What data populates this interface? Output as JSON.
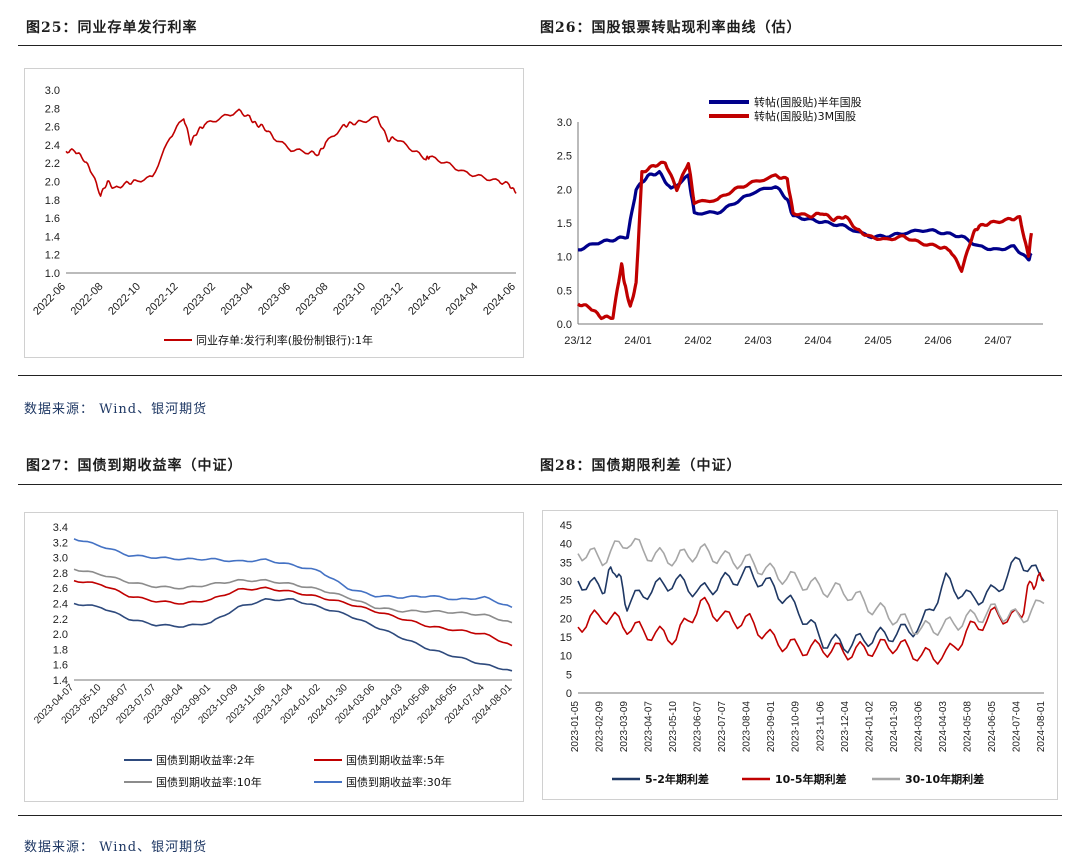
{
  "page": {
    "source_top": "数据来源： Wind、银河期货",
    "source_bottom": "数据来源： Wind、银河期货"
  },
  "colors": {
    "red": "#c00000",
    "navy": "#1f3864",
    "blue": "#2e4a7d",
    "gray": "#a6a6a6",
    "darkblue": "#00008b",
    "lightblue": "#4472c4",
    "midgray": "#8c8c8c"
  },
  "chart_data": [
    {
      "id": "fig25",
      "type": "line",
      "title": "图25：同业存单发行利率",
      "ylim": [
        1.0,
        3.0
      ],
      "yticks": [
        "1.0",
        "1.2",
        "1.4",
        "1.6",
        "1.8",
        "2.0",
        "2.2",
        "2.4",
        "2.6",
        "2.8",
        "3.0"
      ],
      "x_tick_labels": [
        "2022-06",
        "2022-08",
        "2022-10",
        "2022-12",
        "2023-02",
        "2023-04",
        "2023-06",
        "2023-08",
        "2023-10",
        "2023-12",
        "2024-02",
        "2024-04",
        "2024-06"
      ],
      "x_domain": [
        0,
        26
      ],
      "series": [
        {
          "name": "同业存单:发行利率(股份制银行):1年",
          "color": "#c00000",
          "x": [
            0,
            0.5,
            1,
            1.5,
            2,
            2.4,
            2.8,
            3.5,
            4,
            5,
            6,
            6.8,
            7.2,
            7.6,
            8,
            9,
            10,
            10.6,
            11,
            11.4,
            12,
            13,
            14,
            14.6,
            15,
            16,
            16.4,
            17,
            18,
            18.6,
            19,
            20,
            20.8,
            21,
            22,
            23,
            24,
            25,
            25.6,
            26
          ],
          "values": [
            2.33,
            2.34,
            2.25,
            2.1,
            1.85,
            2.0,
            1.92,
            1.98,
            2.0,
            2.05,
            2.48,
            2.7,
            2.42,
            2.55,
            2.62,
            2.7,
            2.77,
            2.7,
            2.62,
            2.6,
            2.48,
            2.35,
            2.32,
            2.3,
            2.42,
            2.6,
            2.63,
            2.65,
            2.7,
            2.45,
            2.48,
            2.35,
            2.25,
            2.27,
            2.2,
            2.1,
            2.05,
            2.0,
            1.97,
            1.87
          ]
        }
      ]
    },
    {
      "id": "fig26",
      "type": "line",
      "title": "图26：国股银票转贴现利率曲线（估）",
      "ylim": [
        0.0,
        3.0
      ],
      "yticks": [
        "0.0",
        "0.5",
        "1.0",
        "1.5",
        "2.0",
        "2.5",
        "3.0"
      ],
      "x_tick_labels": [
        "23/12",
        "24/01",
        "24/02",
        "24/03",
        "24/04",
        "24/05",
        "24/06",
        "24/07"
      ],
      "x_domain": [
        0,
        8
      ],
      "series": [
        {
          "name": "转帖(国股贴)半年国股",
          "color": "#00008b",
          "x": [
            0,
            0.3,
            0.6,
            0.85,
            1.0,
            1.2,
            1.4,
            1.6,
            1.9,
            2.0,
            2.4,
            2.7,
            3.0,
            3.4,
            3.6,
            3.7,
            4.0,
            4.3,
            4.6,
            5.0,
            5.3,
            5.6,
            6.0,
            6.3,
            6.6,
            6.9,
            7.2,
            7.5,
            7.75,
            7.8
          ],
          "values": [
            1.1,
            1.2,
            1.25,
            1.3,
            2.0,
            2.2,
            2.25,
            2.0,
            2.2,
            1.65,
            1.65,
            1.8,
            1.95,
            2.05,
            1.85,
            1.6,
            1.55,
            1.5,
            1.45,
            1.3,
            1.3,
            1.35,
            1.4,
            1.35,
            1.3,
            1.15,
            1.1,
            1.15,
            0.95,
            1.05
          ]
        },
        {
          "name": "转帖(国股贴)3M国股",
          "color": "#c00000",
          "x": [
            0,
            0.2,
            0.4,
            0.6,
            0.75,
            0.8,
            0.9,
            1.0,
            1.1,
            1.3,
            1.5,
            1.7,
            1.9,
            2.0,
            2.4,
            2.7,
            3.0,
            3.4,
            3.6,
            3.7,
            4.0,
            4.2,
            4.4,
            4.6,
            4.8,
            5.0,
            5.3,
            5.6,
            5.9,
            6.2,
            6.4,
            6.6,
            6.8,
            6.9,
            7.1,
            7.4,
            7.6,
            7.75,
            7.8
          ],
          "values": [
            0.3,
            0.25,
            0.1,
            0.1,
            0.9,
            0.6,
            0.25,
            0.6,
            2.25,
            2.35,
            2.4,
            2.0,
            2.4,
            1.8,
            1.85,
            2.0,
            2.1,
            2.2,
            2.15,
            1.65,
            1.6,
            1.65,
            1.55,
            1.6,
            1.4,
            1.3,
            1.25,
            1.3,
            1.2,
            1.15,
            1.1,
            0.8,
            1.35,
            1.45,
            1.5,
            1.55,
            1.58,
            1.0,
            1.35
          ]
        }
      ]
    },
    {
      "id": "fig27",
      "type": "line",
      "title": "图27：国债到期收益率（中证）",
      "ylim": [
        1.4,
        3.4
      ],
      "yticks": [
        "1.4",
        "1.6",
        "1.8",
        "2.0",
        "2.2",
        "2.4",
        "2.6",
        "2.8",
        "3.0",
        "3.2",
        "3.4"
      ],
      "x_tick_labels": [
        "2023-04-07",
        "2023-05-10",
        "2023-06-07",
        "2023-07-07",
        "2023-08-04",
        "2023-09-01",
        "2023-10-09",
        "2023-11-06",
        "2023-12-04",
        "2024-01-02",
        "2024-01-30",
        "2024-03-06",
        "2024-04-03",
        "2024-05-08",
        "2024-06-05",
        "2024-07-04",
        "2024-08-01"
      ],
      "x_domain": [
        0,
        16
      ],
      "series": [
        {
          "name": "国债到期收益率:2年",
          "color": "#2e4a7d",
          "x": [
            0,
            1,
            2,
            3,
            4,
            5,
            6,
            7,
            8,
            9,
            10,
            11,
            12,
            13,
            14,
            15,
            16
          ],
          "values": [
            2.4,
            2.35,
            2.2,
            2.12,
            2.1,
            2.15,
            2.35,
            2.45,
            2.45,
            2.35,
            2.25,
            2.1,
            1.95,
            1.8,
            1.7,
            1.6,
            1.52
          ]
        },
        {
          "name": "国债到期收益率:5年",
          "color": "#c00000",
          "x": [
            0,
            1,
            2,
            3,
            4,
            5,
            6,
            7,
            8,
            9,
            10,
            11,
            12,
            13,
            14,
            15,
            16
          ],
          "values": [
            2.7,
            2.65,
            2.5,
            2.43,
            2.4,
            2.45,
            2.58,
            2.6,
            2.55,
            2.48,
            2.4,
            2.3,
            2.2,
            2.1,
            2.05,
            2.0,
            1.85
          ]
        },
        {
          "name": "国债到期收益率:10年",
          "color": "#8c8c8c",
          "x": [
            0,
            1,
            2,
            3,
            4,
            5,
            6,
            7,
            8,
            9,
            10,
            11,
            12,
            13,
            14,
            15,
            16
          ],
          "values": [
            2.85,
            2.78,
            2.68,
            2.62,
            2.6,
            2.65,
            2.7,
            2.7,
            2.65,
            2.58,
            2.48,
            2.35,
            2.3,
            2.3,
            2.28,
            2.25,
            2.15
          ]
        },
        {
          "name": "国债到期收益率:30年",
          "color": "#4472c4",
          "x": [
            0,
            1,
            2,
            3,
            4,
            5,
            6,
            7,
            8,
            9,
            10,
            11,
            12,
            13,
            14,
            15,
            16
          ],
          "values": [
            3.25,
            3.15,
            3.03,
            3.0,
            2.98,
            2.98,
            2.95,
            2.97,
            2.9,
            2.82,
            2.6,
            2.5,
            2.48,
            2.5,
            2.45,
            2.48,
            2.35
          ]
        }
      ]
    },
    {
      "id": "fig28",
      "type": "line",
      "title": "图28：国债期限利差（中证）",
      "ylim": [
        0,
        45
      ],
      "yticks": [
        "0",
        "5",
        "10",
        "15",
        "20",
        "25",
        "30",
        "35",
        "40",
        "45"
      ],
      "x_tick_labels": [
        "2023-01-05",
        "2023-02-09",
        "2023-03-09",
        "2023-04-07",
        "2023-05-10",
        "2023-06-07",
        "2023-07-07",
        "2023-08-04",
        "2023-09-01",
        "2023-10-09",
        "2023-11-06",
        "2023-12-04",
        "2024-01-02",
        "2024-01-30",
        "2024-03-06",
        "2024-04-03",
        "2024-05-08",
        "2024-06-05",
        "2024-07-04",
        "2024-08-01"
      ],
      "x_domain": [
        0,
        19
      ],
      "series": [
        {
          "name": "5-2年期利差",
          "color": "#1f3864",
          "x": [
            0,
            1,
            1.5,
            2,
            3,
            4,
            5,
            6,
            7,
            8,
            9,
            10,
            11,
            12,
            13,
            14,
            15,
            16,
            17,
            18,
            19
          ],
          "values": [
            30,
            28,
            34,
            24,
            28,
            30,
            27,
            30,
            32,
            28,
            22,
            14,
            13,
            15,
            16,
            18,
            30,
            25,
            27,
            36,
            30
          ]
        },
        {
          "name": "10-5年期利差",
          "color": "#c00000",
          "x": [
            0,
            1,
            2,
            3,
            4,
            5,
            6,
            7,
            8,
            9,
            10,
            11,
            12,
            13,
            14,
            15,
            16,
            17,
            18,
            18.5,
            19
          ],
          "values": [
            18,
            21,
            18,
            16,
            15,
            24,
            20,
            19,
            14,
            12,
            12,
            11,
            12,
            13,
            10,
            10,
            17,
            21,
            20,
            30,
            30
          ]
        },
        {
          "name": "30-10年期利差",
          "color": "#a6a6a6",
          "x": [
            0,
            1,
            2,
            3,
            4,
            5,
            6,
            7,
            8,
            9,
            10,
            11,
            12,
            13,
            14,
            15,
            16,
            17,
            18,
            19
          ],
          "values": [
            38,
            36,
            41,
            37,
            36,
            38,
            36,
            35,
            32,
            30,
            28,
            27,
            23,
            20,
            17,
            18,
            20,
            22,
            20,
            24
          ]
        }
      ]
    }
  ]
}
